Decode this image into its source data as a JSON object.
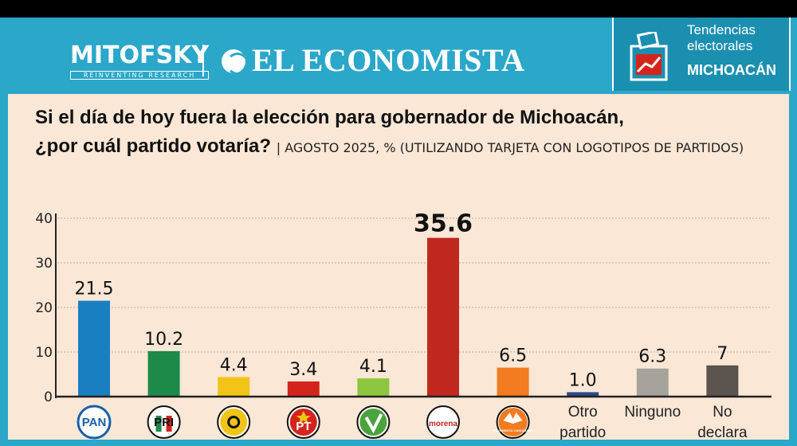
{
  "header": {
    "mitofsky": "MITOFSKY",
    "mitofsky_tagline": "REINVENTING RESEARCH",
    "economista": "EL ECONOMISTA",
    "badge_line1": "Tendencias",
    "badge_line2": "electorales",
    "badge_line3": "MICHOACÁN"
  },
  "colors": {
    "frame": "#2aa7c9",
    "panel": "#fbe7d6"
  },
  "chart_data": {
    "type": "bar",
    "title": "Si el día de hoy fuera la elección para gobernador de Michoacán,",
    "title_line2": "¿por cuál partido votaría?",
    "subtitle": "| AGOSTO 2025, %  (UTILIZANDO TARJETA CON LOGOTIPOS DE PARTIDOS)",
    "ylim": [
      0,
      40
    ],
    "yticks": [
      0,
      10,
      20,
      30,
      40
    ],
    "grid": true,
    "categories": [
      "PAN",
      "PRI",
      "PRD",
      "PT",
      "PVEM",
      "morena",
      "MC",
      "Otro partido",
      "Ninguno",
      "No declara"
    ],
    "values": [
      21.5,
      10.2,
      4.4,
      3.4,
      4.1,
      35.6,
      6.5,
      1.0,
      6.3,
      7
    ],
    "value_labels": [
      "21.5",
      "10.2",
      "4.4",
      "3.4",
      "4.1",
      "35.6",
      "6.5",
      "1.0",
      "6.3",
      "7"
    ],
    "bar_colors": [
      "#1a7fc1",
      "#1d8a4a",
      "#f2c418",
      "#d4251c",
      "#8cc63f",
      "#c0281f",
      "#f37b20",
      "#2b4a8a",
      "#a6a39c",
      "#5a534e"
    ],
    "logo_text": [
      "PAN",
      "PRI",
      "",
      "PT",
      "",
      "morena",
      "MOVIMIENTO CIUDADANO"
    ],
    "text_labels": [
      {
        "index": 7,
        "lines": [
          "Otro",
          "partido"
        ]
      },
      {
        "index": 8,
        "lines": [
          "Ninguno"
        ]
      },
      {
        "index": 9,
        "lines": [
          "No",
          "declara"
        ]
      }
    ]
  }
}
